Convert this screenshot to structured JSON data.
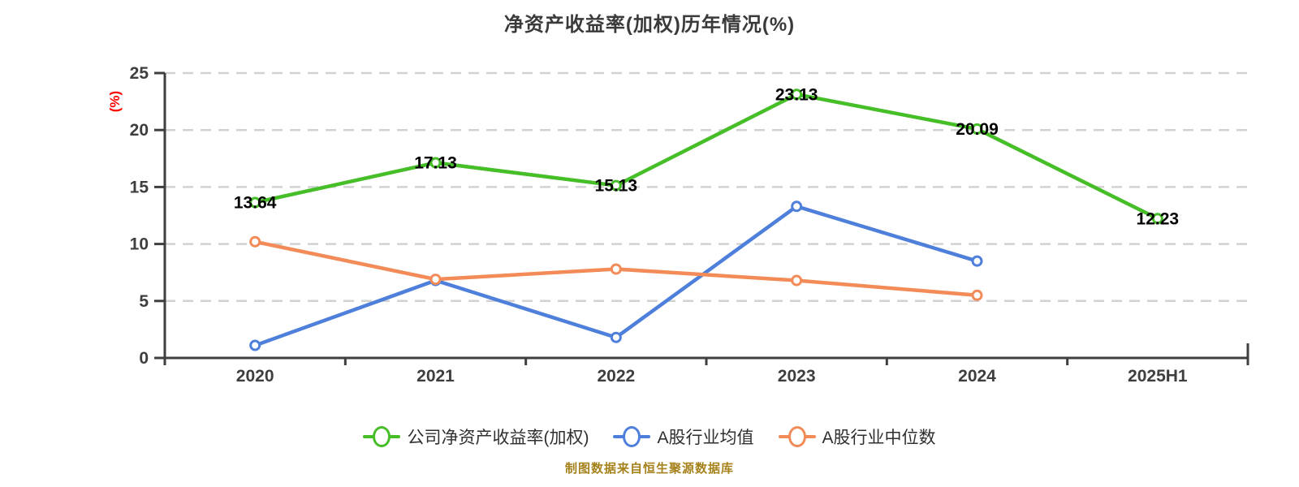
{
  "title": "净资产收益率(加权)历年情况(%)",
  "y_axis_unit": "(%)",
  "caption": "制图数据来自恒生聚源数据库",
  "colors": {
    "title_text": "#3a3a3a",
    "axis": "#3f3f3f",
    "tick_label": "#3e3e3e",
    "gridline": "#d2d2d2",
    "data_label": "#000000",
    "y_unit_label": "#ff0000",
    "caption_text": "#a6821c",
    "background": "#ffffff",
    "company_series": "#45be27",
    "industry_mean_series": "#4e7fdb",
    "industry_median_series": "#f28b57"
  },
  "chart_data": {
    "type": "line",
    "title": "净资产收益率(加权)历年情况(%)",
    "ylabel": "(%)",
    "categories": [
      "2020",
      "2021",
      "2022",
      "2023",
      "2024",
      "2025H1"
    ],
    "series": [
      {
        "name": "公司净资产收益率(加权)",
        "color": "#45be27",
        "values": [
          13.64,
          17.13,
          15.13,
          23.13,
          20.09,
          12.23
        ],
        "labels_shown": true,
        "data_labels": [
          "13.64",
          "17.13",
          "15.13",
          "23.13",
          "20.09",
          "12.23"
        ]
      },
      {
        "name": "A股行业均值",
        "color": "#4e7fdb",
        "values": [
          1.1,
          6.8,
          1.8,
          13.3,
          8.5,
          null
        ],
        "labels_shown": false
      },
      {
        "name": "A股行业中位数",
        "color": "#f28b57",
        "values": [
          10.2,
          6.9,
          7.8,
          6.8,
          5.5,
          null
        ],
        "labels_shown": false
      }
    ],
    "ylim": [
      0,
      25
    ],
    "yticks": [
      0,
      5,
      10,
      15,
      20,
      25
    ],
    "grid": "horizontal-dashed",
    "legend_position": "bottom",
    "marker_style": "white-filled circle with colored ring"
  }
}
